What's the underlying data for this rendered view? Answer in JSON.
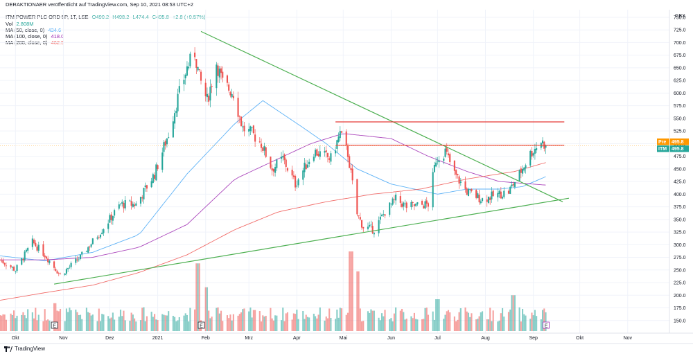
{
  "header": {
    "publisher": "DERAKTIONAER veröffentlicht auf TradingView.com, Sep 10, 2021 08:53 UTC+2",
    "symbol": "ITM POWER PLC ORD 5P, 1T, LSE",
    "ohlc": {
      "o": "O490.2",
      "h": "H498.2",
      "l": "L474.4",
      "c": "C495.8",
      "chg": "+2.8 (+0.57%)"
    },
    "vol_label": "Vol",
    "vol_value": "2.808M",
    "ma50_label": "MA (50, close, 0)",
    "ma50_value": "434.6",
    "ma100_label": "MA (100, close, 0)",
    "ma100_value": "418.0",
    "ma200_label": "MA (200, close, 0)",
    "ma200_value": "462.5"
  },
  "currency": "GBX",
  "branding": "TradingView",
  "colors": {
    "up": "#26a69a",
    "down": "#ef5350",
    "ma50": "#42a5f5",
    "ma100": "#9c27b0",
    "ma200": "#ef5350",
    "trend_green": "#4caf50",
    "resistance": "#e53935",
    "pre_tag": "#ff9800",
    "itm_tag": "#26a69a"
  },
  "price_tags": [
    {
      "label": "Pre",
      "value": "495.8"
    },
    {
      "label": "ITM",
      "value": "495.8"
    }
  ],
  "event_markers": [
    "E",
    "E",
    "E"
  ],
  "chart_data": {
    "type": "candlestick",
    "y_range": [
      125,
      765
    ],
    "y_ticks": [
      "750.0",
      "725.0",
      "700.0",
      "675.0",
      "650.0",
      "625.0",
      "600.0",
      "575.0",
      "550.0",
      "525.0",
      "500.0",
      "475.0",
      "450.0",
      "425.0",
      "400.0",
      "375.0",
      "350.0",
      "325.0",
      "300.0",
      "275.0",
      "250.0",
      "225.0",
      "200.0",
      "175.0",
      "150.0"
    ],
    "x_ticks": [
      "Okt",
      "Nov",
      "Dez",
      "2021",
      "Feb",
      "Mrz",
      "Apr",
      "Mai",
      "Jun",
      "Jul",
      "Aug",
      "Sep",
      "Okt",
      "Nov"
    ],
    "x_range": [
      "2020-09-21",
      "2021-11-28"
    ],
    "price_anchors": [
      [
        "2020-09-21",
        270
      ],
      [
        "2020-10-01",
        250
      ],
      [
        "2020-10-12",
        305
      ],
      [
        "2020-10-20",
        280
      ],
      [
        "2020-10-30",
        240
      ],
      [
        "2020-11-12",
        275
      ],
      [
        "2020-11-26",
        330
      ],
      [
        "2020-12-08",
        380
      ],
      [
        "2020-12-18",
        380
      ],
      [
        "2020-12-30",
        440
      ],
      [
        "2021-01-08",
        520
      ],
      [
        "2021-01-14",
        590
      ],
      [
        "2021-01-20",
        650
      ],
      [
        "2021-01-25",
        680
      ],
      [
        "2021-01-28",
        630
      ],
      [
        "2021-02-02",
        585
      ],
      [
        "2021-02-08",
        660
      ],
      [
        "2021-02-12",
        620
      ],
      [
        "2021-02-19",
        600
      ],
      [
        "2021-02-25",
        530
      ],
      [
        "2021-03-03",
        520
      ],
      [
        "2021-03-09",
        500
      ],
      [
        "2021-03-16",
        450
      ],
      [
        "2021-03-23",
        470
      ],
      [
        "2021-03-31",
        420
      ],
      [
        "2021-04-12",
        485
      ],
      [
        "2021-04-23",
        470
      ],
      [
        "2021-04-29",
        520
      ],
      [
        "2021-05-04",
        480
      ],
      [
        "2021-05-10",
        360
      ],
      [
        "2021-05-14",
        335
      ],
      [
        "2021-05-21",
        330
      ],
      [
        "2021-05-28",
        365
      ],
      [
        "2021-06-04",
        390
      ],
      [
        "2021-06-11",
        375
      ],
      [
        "2021-06-25",
        380
      ],
      [
        "2021-06-30",
        470
      ],
      [
        "2021-07-06",
        485
      ],
      [
        "2021-07-12",
        440
      ],
      [
        "2021-07-20",
        405
      ],
      [
        "2021-07-30",
        390
      ],
      [
        "2021-08-10",
        400
      ],
      [
        "2021-08-16",
        405
      ],
      [
        "2021-08-23",
        440
      ],
      [
        "2021-08-30",
        480
      ],
      [
        "2021-09-06",
        505
      ],
      [
        "2021-09-09",
        495.8
      ]
    ],
    "ma50_anchors": [
      [
        "2020-09-21",
        278
      ],
      [
        "2020-10-20",
        268
      ],
      [
        "2020-11-20",
        285
      ],
      [
        "2020-12-20",
        320
      ],
      [
        "2021-01-20",
        440
      ],
      [
        "2021-02-20",
        540
      ],
      [
        "2021-03-10",
        585
      ],
      [
        "2021-04-01",
        540
      ],
      [
        "2021-04-20",
        500
      ],
      [
        "2021-05-10",
        450
      ],
      [
        "2021-06-01",
        420
      ],
      [
        "2021-07-01",
        400
      ],
      [
        "2021-07-20",
        410
      ],
      [
        "2021-08-10",
        410
      ],
      [
        "2021-08-25",
        415
      ],
      [
        "2021-09-09",
        434.6
      ]
    ],
    "ma100_anchors": [
      [
        "2020-09-21",
        270
      ],
      [
        "2020-10-20",
        270
      ],
      [
        "2020-11-20",
        275
      ],
      [
        "2020-12-20",
        295
      ],
      [
        "2021-01-20",
        340
      ],
      [
        "2021-02-20",
        430
      ],
      [
        "2021-03-20",
        470
      ],
      [
        "2021-04-10",
        500
      ],
      [
        "2021-05-01",
        520
      ],
      [
        "2021-06-01",
        510
      ],
      [
        "2021-06-25",
        475
      ],
      [
        "2021-07-20",
        445
      ],
      [
        "2021-08-10",
        425
      ],
      [
        "2021-09-09",
        418.0
      ]
    ],
    "ma200_anchors": [
      [
        "2020-09-21",
        190
      ],
      [
        "2020-10-20",
        205
      ],
      [
        "2020-11-20",
        220
      ],
      [
        "2020-12-20",
        245
      ],
      [
        "2021-01-20",
        280
      ],
      [
        "2021-02-20",
        330
      ],
      [
        "2021-03-20",
        365
      ],
      [
        "2021-04-20",
        385
      ],
      [
        "2021-05-20",
        400
      ],
      [
        "2021-06-20",
        410
      ],
      [
        "2021-07-20",
        430
      ],
      [
        "2021-08-20",
        445
      ],
      [
        "2021-09-09",
        462.5
      ]
    ],
    "trendlines": [
      {
        "name": "descending-trendline",
        "x1": "2021-01-29",
        "y1": 722,
        "x2": "2021-09-20",
        "y2": 385
      },
      {
        "name": "ascending-trendline",
        "x1": "2020-10-26",
        "y1": 222,
        "x2": "2021-09-24",
        "y2": 392
      },
      {
        "name": "resistance-upper",
        "x1": "2021-04-26",
        "y1": 543,
        "x2": "2021-09-21",
        "y2": 543
      },
      {
        "name": "resistance-lower",
        "x1": "2021-04-26",
        "y1": 497,
        "x2": "2021-09-21",
        "y2": 497
      }
    ],
    "volume_peaks": [
      [
        "2020-10-26",
        0.35
      ],
      [
        "2021-01-27",
        0.85
      ],
      [
        "2021-02-01",
        0.55
      ],
      [
        "2021-05-06",
        1.0
      ],
      [
        "2021-05-10",
        0.75
      ],
      [
        "2021-07-01",
        0.4
      ],
      [
        "2021-08-19",
        0.45
      ]
    ]
  }
}
